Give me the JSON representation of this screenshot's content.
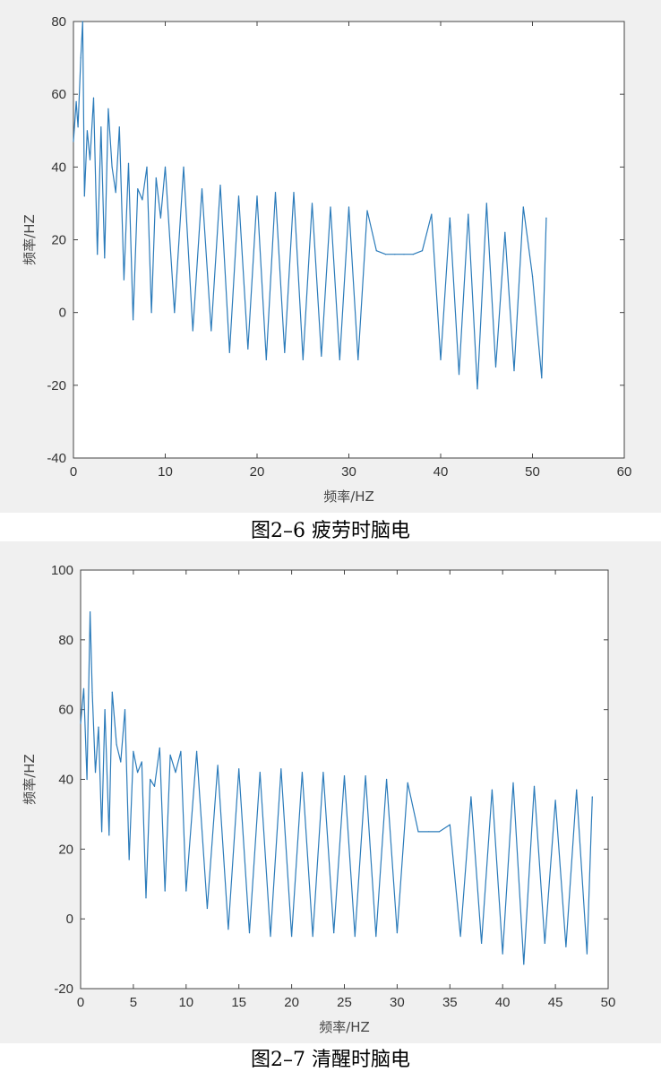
{
  "chart_data": [
    {
      "type": "line",
      "title": "",
      "xlabel": "频率/HZ",
      "ylabel": "频率/HZ",
      "xlim": [
        0,
        60
      ],
      "ylim": [
        -40,
        80
      ],
      "xticks": [
        0,
        10,
        20,
        30,
        40,
        50,
        60
      ],
      "yticks": [
        -40,
        -20,
        0,
        20,
        40,
        60,
        80
      ],
      "grid": false,
      "color": "#2b7bba",
      "series": [
        {
          "x": [
            0,
            0.3,
            0.5,
            0.8,
            1.0,
            1.2,
            1.5,
            1.8,
            2.2,
            2.6,
            3.0,
            3.4,
            3.8,
            4.2,
            4.6,
            5.0,
            5.5,
            6.0,
            6.5,
            7.0,
            7.5,
            8.0,
            8.5,
            9.0,
            9.5,
            10.0,
            11.0,
            12.0,
            13.0,
            14.0,
            15.0,
            16.0,
            17.0,
            18.0,
            19.0,
            20.0,
            21.0,
            22.0,
            23.0,
            24.0,
            25.0,
            26.0,
            27.0,
            28.0,
            29.0,
            30.0,
            31.0,
            32.0,
            33.0,
            34.0,
            35.0,
            36.0,
            37.0,
            38.0,
            39.0,
            40.0,
            41.0,
            42.0,
            43.0,
            44.0,
            45.0,
            46.0,
            47.0,
            48.0,
            49.0,
            50.0,
            51.0,
            51.5
          ],
          "y": [
            47,
            58,
            51,
            70,
            80,
            32,
            50,
            42,
            59,
            16,
            51,
            15,
            56,
            40,
            33,
            51,
            9,
            41,
            -2,
            34,
            31,
            40,
            0,
            37,
            26,
            40,
            0,
            40,
            -5,
            34,
            -5,
            35,
            -11,
            32,
            -10,
            32,
            -13,
            33,
            -11,
            33,
            -13,
            30,
            -12,
            29,
            -13,
            29,
            -13,
            28,
            17,
            16,
            16,
            16,
            16,
            17,
            27,
            -13,
            26,
            -17,
            27,
            -21,
            30,
            -15,
            22,
            -16,
            29,
            10,
            -18,
            26
          ]
        }
      ]
    },
    {
      "type": "line",
      "title": "",
      "xlabel": "频率/HZ",
      "ylabel": "频率/HZ",
      "xlim": [
        0,
        50
      ],
      "ylim": [
        -20,
        100
      ],
      "xticks": [
        0,
        5,
        10,
        15,
        20,
        25,
        30,
        35,
        40,
        45,
        50
      ],
      "yticks": [
        -20,
        0,
        20,
        40,
        60,
        80,
        100
      ],
      "grid": false,
      "color": "#2b7bba",
      "series": [
        {
          "x": [
            0,
            0.3,
            0.6,
            0.9,
            1.1,
            1.4,
            1.7,
            2.0,
            2.3,
            2.7,
            3.0,
            3.4,
            3.8,
            4.2,
            4.6,
            5.0,
            5.4,
            5.8,
            6.2,
            6.6,
            7.0,
            7.5,
            8.0,
            8.5,
            9.0,
            9.5,
            10.0,
            11.0,
            12.0,
            13.0,
            14.0,
            15.0,
            16.0,
            17.0,
            18.0,
            19.0,
            20.0,
            21.0,
            22.0,
            23.0,
            24.0,
            25.0,
            26.0,
            27.0,
            28.0,
            29.0,
            30.0,
            31.0,
            32.0,
            33.0,
            34.0,
            35.0,
            36.0,
            37.0,
            38.0,
            39.0,
            40.0,
            41.0,
            42.0,
            43.0,
            44.0,
            45.0,
            46.0,
            47.0,
            48.0,
            48.5
          ],
          "y": [
            56,
            66,
            40,
            88,
            65,
            42,
            55,
            25,
            60,
            24,
            65,
            50,
            45,
            60,
            17,
            48,
            42,
            45,
            6,
            40,
            38,
            49,
            8,
            47,
            42,
            48,
            8,
            48,
            3,
            44,
            -3,
            43,
            -4,
            42,
            -5,
            43,
            -5,
            42,
            -5,
            42,
            -4,
            41,
            -5,
            41,
            -5,
            40,
            -4,
            39,
            25,
            25,
            25,
            27,
            -5,
            35,
            -7,
            37,
            -10,
            39,
            -13,
            38,
            -7,
            34,
            -8,
            37,
            -10,
            35
          ]
        }
      ]
    }
  ],
  "captions": [
    "图2–6  疲劳时脑电",
    "图2–7  清醒时脑电"
  ]
}
